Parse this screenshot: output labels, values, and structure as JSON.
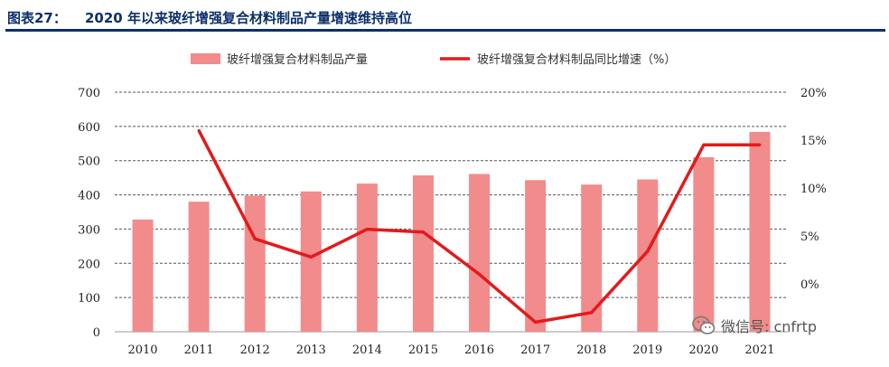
{
  "header": {
    "label": "图表27：",
    "title": "2020 年以来玻纤增强复合材料制品产量增速维持高位"
  },
  "watermark": {
    "text": "微信号: cnfrtp",
    "icon": "wechat-icon"
  },
  "colors": {
    "bar": "#f28b8b",
    "line": "#e31a1c",
    "grid": "#555555",
    "header": "#0b2f6b"
  },
  "chart_data": {
    "type": "bar+line",
    "categories": [
      "2010",
      "2011",
      "2012",
      "2013",
      "2014",
      "2015",
      "2016",
      "2017",
      "2018",
      "2019",
      "2020",
      "2021"
    ],
    "series": [
      {
        "name": "玻纤增强复合材料制品产量",
        "type": "bar",
        "axis": "left",
        "values": [
          328,
          380,
          398,
          410,
          433,
          457,
          461,
          443,
          430,
          445,
          510,
          584
        ]
      },
      {
        "name": "玻纤增强复合材料制品同比增速（%）",
        "type": "line",
        "axis": "right",
        "values": [
          null,
          16.0,
          4.7,
          2.8,
          5.7,
          5.4,
          1.0,
          -4.0,
          -3.0,
          3.4,
          14.5,
          14.5
        ]
      }
    ],
    "left_axis": {
      "ylim": [
        0,
        700
      ],
      "ticks": [
        0,
        100,
        200,
        300,
        400,
        500,
        600,
        700
      ]
    },
    "right_axis": {
      "ylim": [
        -5,
        20
      ],
      "ticks": [
        0,
        5,
        10,
        15,
        20
      ],
      "tick_labels": [
        "0%",
        "5%",
        "10%",
        "15%",
        "20%"
      ]
    },
    "grid": "horizontal-dashed",
    "legend": "top-center"
  }
}
